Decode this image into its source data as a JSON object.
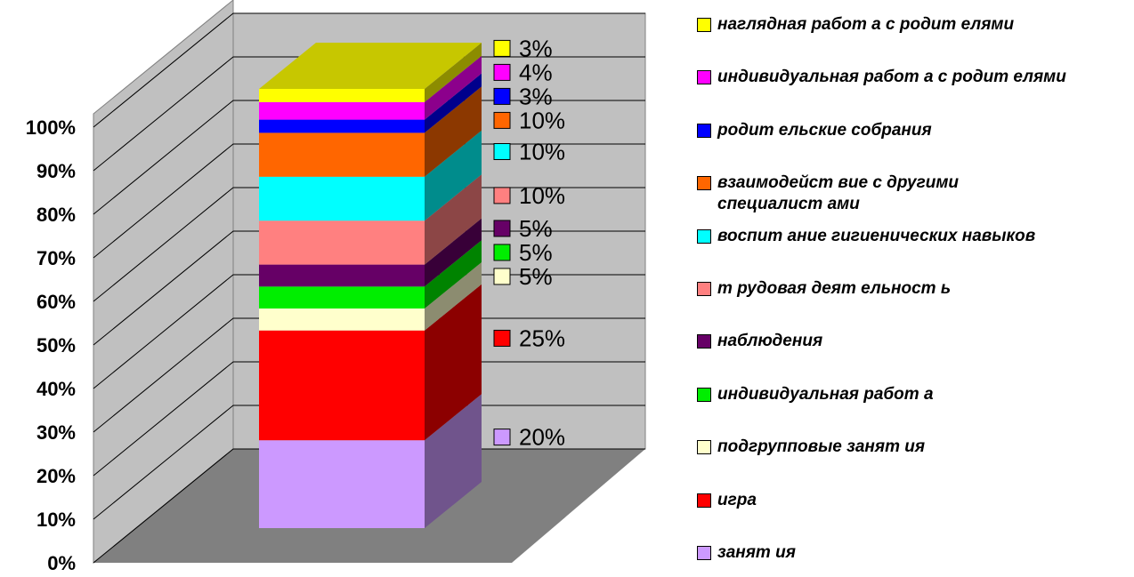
{
  "chart_data": {
    "type": "bar",
    "stacked": true,
    "ylim": [
      0,
      100
    ],
    "yticks": [
      {
        "value": 0,
        "label": "0%"
      },
      {
        "value": 10,
        "label": "10%"
      },
      {
        "value": 20,
        "label": "20%"
      },
      {
        "value": 30,
        "label": "30%"
      },
      {
        "value": 40,
        "label": "40%"
      },
      {
        "value": 50,
        "label": "50%"
      },
      {
        "value": 60,
        "label": "60%"
      },
      {
        "value": 70,
        "label": "70%"
      },
      {
        "value": 80,
        "label": "80%"
      },
      {
        "value": 90,
        "label": "90%"
      },
      {
        "value": 100,
        "label": "100%"
      }
    ],
    "grid": true,
    "legend": "right",
    "series": [
      {
        "name": "занят ия",
        "color": "#cc99ff",
        "values": [
          20
        ],
        "value_labels": [
          "20%"
        ]
      },
      {
        "name": "игра",
        "color": "#ff0000",
        "values": [
          25
        ],
        "value_labels": [
          "25%"
        ]
      },
      {
        "name": "подгрупповые занят ия",
        "color": "#ffffcc",
        "values": [
          5
        ],
        "value_labels": [
          "5%"
        ]
      },
      {
        "name": "индивидуальная работ а",
        "color": "#00ee00",
        "values": [
          5
        ],
        "value_labels": [
          "5%"
        ]
      },
      {
        "name": "наблюдения",
        "color": "#660066",
        "values": [
          5
        ],
        "value_labels": [
          "5%"
        ]
      },
      {
        "name": "т рудовая деят ельност ь",
        "color": "#ff8080",
        "values": [
          10
        ],
        "value_labels": [
          "10%"
        ]
      },
      {
        "name": "воспит ание гигиенических навыков",
        "color": "#00ffff",
        "values": [
          10
        ],
        "value_labels": [
          "10%"
        ]
      },
      {
        "name": "взаимодейст вие с другими\nспециалист ами",
        "color": "#ff6600",
        "values": [
          10
        ],
        "value_labels": [
          "10%"
        ]
      },
      {
        "name": "родит ельские собрания",
        "color": "#0000ff",
        "values": [
          3
        ],
        "value_labels": [
          "3%"
        ]
      },
      {
        "name": "индивидуальная работ а с родит елями",
        "color": "#ff00ff",
        "values": [
          4
        ],
        "value_labels": [
          "4%"
        ]
      },
      {
        "name": "наглядная работ а с родит елями",
        "color": "#ffff00",
        "values": [
          3
        ],
        "value_labels": [
          "3%"
        ]
      }
    ]
  }
}
